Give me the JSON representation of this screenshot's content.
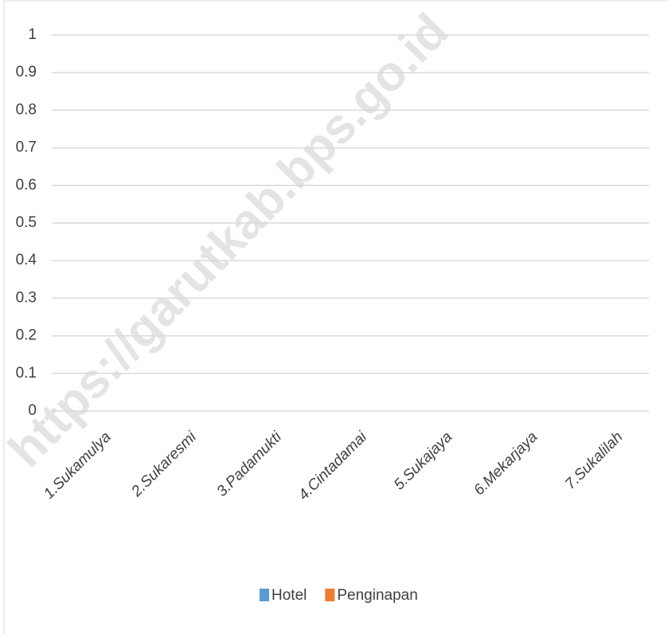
{
  "chart_data": {
    "type": "bar",
    "watermark": "https://garutkab.bps.go.id",
    "categories": [
      "1.Sukamulya",
      "2.Sukaresmi",
      "3.Padamukti",
      "4.Cintadamai",
      "5.Sukajaya",
      "6.Mekarjaya",
      "7.Sukalilah"
    ],
    "series": [
      {
        "name": "Hotel",
        "color": "#5b9bd5",
        "values": [
          0,
          0,
          0,
          0,
          0,
          0,
          0
        ]
      },
      {
        "name": "Penginapan",
        "color": "#ed7d31",
        "values": [
          0,
          0,
          0,
          0,
          0,
          0,
          0
        ]
      }
    ],
    "ylim": [
      0,
      1
    ],
    "yticks": [
      0,
      0.1,
      0.2,
      0.3,
      0.4,
      0.5,
      0.6,
      0.7,
      0.8,
      0.9,
      1
    ],
    "grid": true,
    "legend": "bottom"
  }
}
